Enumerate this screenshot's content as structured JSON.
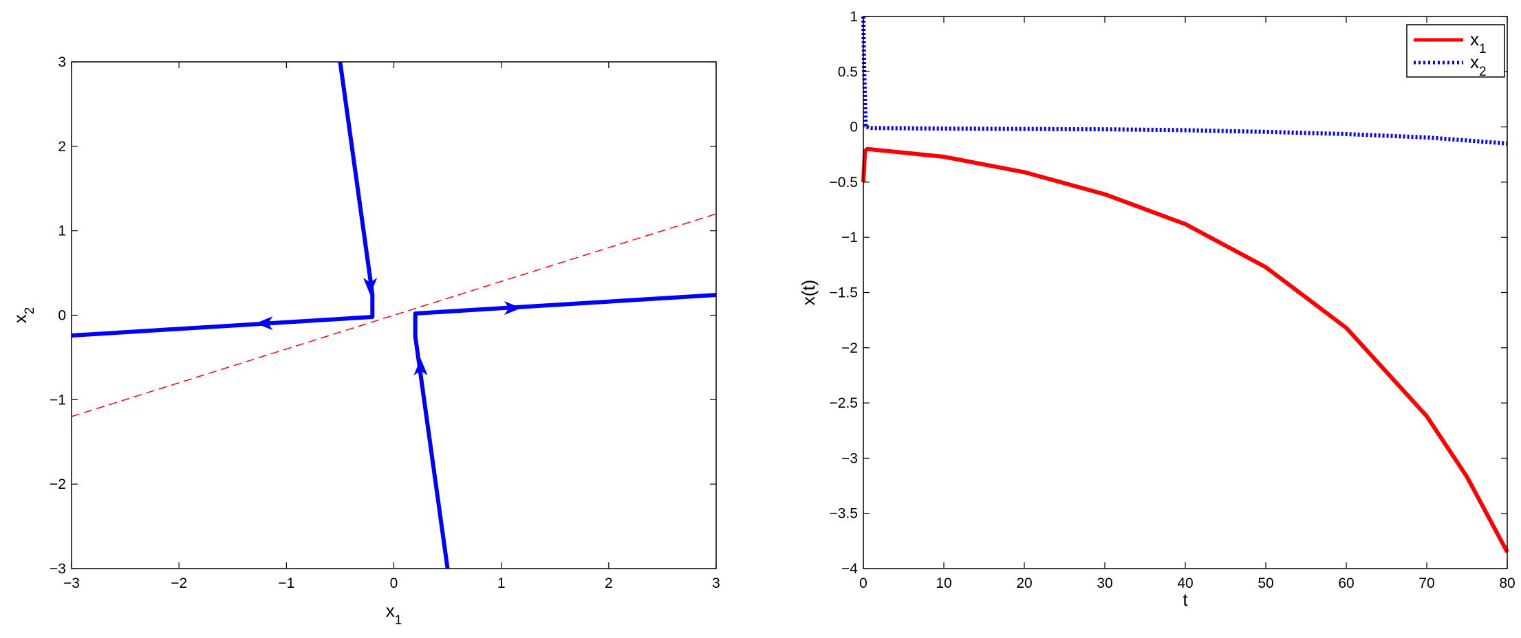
{
  "chart_data": [
    {
      "type": "line",
      "xlabel": "x",
      "xlabel_sub": "1",
      "ylabel": "x",
      "ylabel_sub": "2",
      "xlim": [
        -3,
        3
      ],
      "ylim": [
        -3,
        3
      ],
      "xticks": [
        -3,
        -2,
        -1,
        0,
        1,
        2,
        3
      ],
      "yticks": [
        -3,
        -2,
        -1,
        0,
        1,
        2,
        3
      ],
      "xtick_labels": [
        "−3",
        "−2",
        "−1",
        "0",
        "1",
        "2",
        "3"
      ],
      "ytick_labels": [
        "−3",
        "−2",
        "−1",
        "0",
        "1",
        "2",
        "3"
      ],
      "grid": false,
      "colors": {
        "trajectory": "#0000ff",
        "reference": "#ff0000"
      },
      "series": [
        {
          "style": "solid-thick",
          "color": "#0000ff",
          "x": [
            -0.5,
            -0.2,
            -0.2,
            -3
          ],
          "y": [
            3,
            0.25,
            -0.02,
            -0.24
          ]
        },
        {
          "style": "solid-thick",
          "color": "#0000ff",
          "x": [
            0.5,
            0.2,
            0.2,
            3
          ],
          "y": [
            -3,
            -0.25,
            0.02,
            0.24
          ]
        },
        {
          "style": "dashed-thin",
          "color": "#ff0000",
          "x": [
            -3,
            3
          ],
          "y": [
            -1.2,
            1.2
          ]
        }
      ],
      "arrows": [
        {
          "x": -0.22,
          "y": 0.35,
          "dir": "down"
        },
        {
          "x": 0.25,
          "y": -0.62,
          "dir": "up"
        },
        {
          "x": -1.2,
          "y": -0.095,
          "dir": "left"
        },
        {
          "x": 1.1,
          "y": 0.085,
          "dir": "right"
        }
      ]
    },
    {
      "type": "line",
      "xlabel": "t",
      "ylabel": "x(t)",
      "xlim": [
        0,
        80
      ],
      "ylim": [
        -4,
        1
      ],
      "xticks": [
        0,
        10,
        20,
        30,
        40,
        50,
        60,
        70,
        80
      ],
      "yticks": [
        -4,
        -3.5,
        -3,
        -2.5,
        -2,
        -1.5,
        -1,
        -0.5,
        0,
        0.5,
        1
      ],
      "xtick_labels": [
        "0",
        "10",
        "20",
        "30",
        "40",
        "50",
        "60",
        "70",
        "80"
      ],
      "ytick_labels": [
        "−4",
        "−3.5",
        "−3",
        "−2.5",
        "−2",
        "−1.5",
        "−1",
        "−0.5",
        "0",
        "0.5",
        "1"
      ],
      "grid": false,
      "legend_position": "top-right",
      "series": [
        {
          "name": "x",
          "name_sub": "1",
          "color": "#ff0000",
          "style": "solid",
          "x": [
            0,
            0.2,
            0.5,
            10,
            20,
            30,
            40,
            50,
            60,
            70,
            75,
            80
          ],
          "y": [
            -0.5,
            -0.22,
            -0.2,
            -0.27,
            -0.41,
            -0.61,
            -0.88,
            -1.27,
            -1.82,
            -2.62,
            -3.17,
            -3.85
          ]
        },
        {
          "name": "x",
          "name_sub": "2",
          "color": "#0000ff",
          "style": "dotted",
          "x": [
            0,
            0.1,
            0.3,
            1,
            10,
            20,
            30,
            40,
            50,
            60,
            70,
            80
          ],
          "y": [
            1.0,
            0.5,
            0.0,
            -0.01,
            -0.015,
            -0.018,
            -0.022,
            -0.03,
            -0.045,
            -0.065,
            -0.095,
            -0.15
          ]
        }
      ]
    }
  ]
}
